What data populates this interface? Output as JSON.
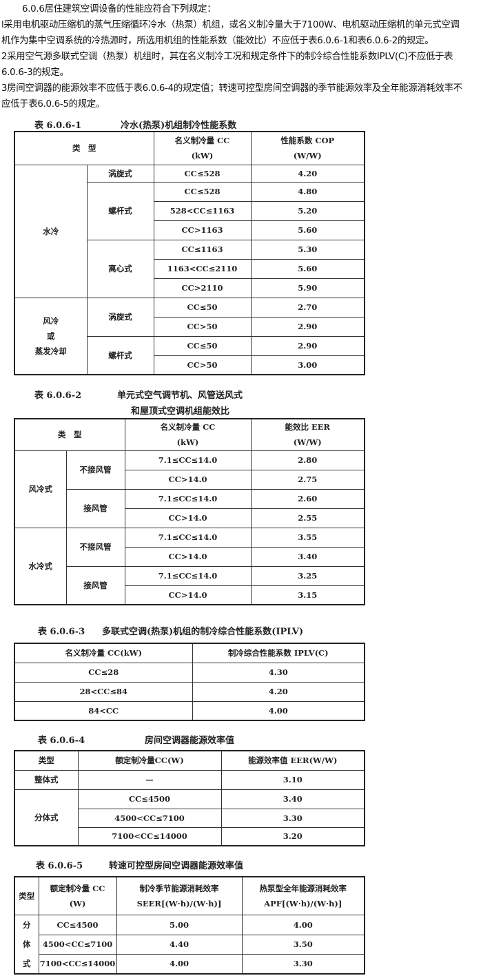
{
  "intro": {
    "heading": "6.0.6居住建筑空调设备的性能应符合下列规定：",
    "l1": "l采用电机驱动压缩机的蒸气压缩循环冷水（热泵）机组，或名义制冷量大于7100W、电机驱动压缩机的单元式空调",
    "l2": "机作为集中空调系统的冷热源时，所选用机组的性能系数（能效比）不应低于表6.0.6-1和表6.0.6-2的规定。",
    "l3": "2采用空气源多联式空调（热泵）机组时，其在名义制冷工况和规定条件下的制冷综合性能系数IPLV(C)不应低于表",
    "l4": "6.0.6-3的规定。",
    "l5": "3房间空调器的能源效率不应低于表6.0.6-4的规定值；转速可控型房间空调器的季节能源效率及全年能源消耗效率不",
    "l6": "应低于表6.0.6-5的规定。"
  },
  "t1": {
    "num": "表 6.0.6-1",
    "title": "冷水(热泵)机组制冷性能系数",
    "h": [
      "类　型",
      "名义制冷量 CC",
      "(kW)",
      "性能系数 COP",
      "(W/W)"
    ],
    "g": [
      "水冷",
      "风冷",
      "或",
      "蒸发冷却"
    ],
    "s": [
      "涡旋式",
      "螺杆式",
      "离心式",
      "涡旋式",
      "螺杆式"
    ],
    "r": [
      [
        "CC≤528",
        "4.20"
      ],
      [
        "CC≤528",
        "4.80"
      ],
      [
        "528<CC≤1163",
        "5.20"
      ],
      [
        "CC>1163",
        "5.60"
      ],
      [
        "CC≤1163",
        "5.30"
      ],
      [
        "1163<CC≤2110",
        "5.60"
      ],
      [
        "CC>2110",
        "5.90"
      ],
      [
        "CC≤50",
        "2.70"
      ],
      [
        "CC>50",
        "2.90"
      ],
      [
        "CC≤50",
        "2.90"
      ],
      [
        "CC>50",
        "3.00"
      ]
    ]
  },
  "t2": {
    "num": "表 6.0.6-2",
    "title1": "单元式空气调节机、风管送风式",
    "title2": "和屋顶式空调机组能效比",
    "h": [
      "类　型",
      "名义制冷量 CC",
      "(kW)",
      "能效比 EER",
      "(W/W)"
    ],
    "g": [
      "风冷式",
      "水冷式"
    ],
    "s": [
      "不接风管",
      "接风管",
      "不接风管",
      "接风管"
    ],
    "r": [
      [
        "7.1≤CC≤14.0",
        "2.80"
      ],
      [
        "CC>14.0",
        "2.75"
      ],
      [
        "7.1≤CC≤14.0",
        "2.60"
      ],
      [
        "CC>14.0",
        "2.55"
      ],
      [
        "7.1≤CC≤14.0",
        "3.55"
      ],
      [
        "CC>14.0",
        "3.40"
      ],
      [
        "7.1≤CC≤14.0",
        "3.25"
      ],
      [
        "CC>14.0",
        "3.15"
      ]
    ]
  },
  "t3": {
    "num": "表 6.0.6-3",
    "title": "多联式空调(热泵)机组的制冷综合性能系数(IPLV)",
    "h": [
      "名义制冷量 CC(kW)",
      "制冷综合性能系数 IPLV(C)"
    ],
    "r": [
      [
        "CC≤28",
        "4.30"
      ],
      [
        "28<CC≤84",
        "4.20"
      ],
      [
        "84<CC",
        "4.00"
      ]
    ]
  },
  "t4": {
    "num": "表 6.0.6-4",
    "title": "房间空调器能源效率值",
    "h": [
      "类型",
      "额定制冷量CC(W)",
      "能源效率值 EER(W/W)"
    ],
    "g": [
      "整体式",
      "分体式"
    ],
    "r": [
      [
        "—",
        "3.10"
      ],
      [
        "CC≤4500",
        "3.40"
      ],
      [
        "4500<CC≤7100",
        "3.30"
      ],
      [
        "7100<CC≤14000",
        "3.20"
      ]
    ]
  },
  "t5": {
    "num": "表 6.0.6-5",
    "title": "转速可控型房间空调器能源效率值",
    "h": [
      "类型",
      "额定制冷量 CC",
      "(W)",
      "制冷季节能源消耗效率",
      "SEER[(W·h)/(W·h)]",
      "热泵型全年能源消耗效率",
      "APF[(W·h)/(W·h)]"
    ],
    "g": [
      "分",
      "体",
      "式"
    ],
    "r": [
      [
        "CC≤4500",
        "5.00",
        "4.00"
      ],
      [
        "4500<CC≤7100",
        "4.40",
        "3.50"
      ],
      [
        "7100<CC≤14000",
        "4.00",
        "3.30"
      ]
    ]
  }
}
